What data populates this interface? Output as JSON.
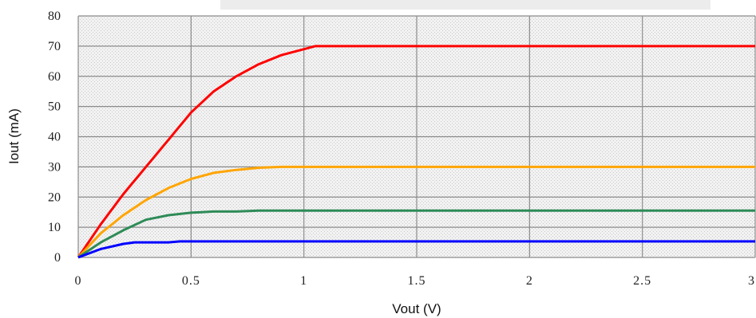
{
  "chart_data": {
    "type": "line",
    "xlabel": "Vout (V)",
    "ylabel": "Iout (mA)",
    "xlim": [
      0,
      3
    ],
    "ylim": [
      0,
      80
    ],
    "x_ticks": [
      "0",
      "0.5",
      "1",
      "1.5",
      "2",
      "2.5",
      "3"
    ],
    "y_ticks": [
      "0",
      "10",
      "20",
      "30",
      "40",
      "50",
      "60",
      "70",
      "80"
    ],
    "grid": true,
    "legend": "none",
    "series": [
      {
        "color": "#ff0000",
        "x": [
          0,
          0.1,
          0.2,
          0.3,
          0.4,
          0.5,
          0.6,
          0.7,
          0.8,
          0.9,
          1.0,
          1.05,
          1.1,
          1.5,
          2.0,
          2.5,
          3.0
        ],
        "y": [
          0,
          11,
          21,
          30,
          39,
          48,
          55,
          60,
          64,
          67,
          69,
          70,
          70,
          70,
          70,
          70,
          70
        ]
      },
      {
        "color": "#ffa500",
        "x": [
          0,
          0.1,
          0.2,
          0.3,
          0.4,
          0.5,
          0.6,
          0.7,
          0.8,
          0.9,
          1.0,
          1.5,
          2.0,
          2.5,
          3.0
        ],
        "y": [
          0,
          8,
          14,
          19,
          23,
          26,
          28,
          29,
          29.7,
          30,
          30,
          30,
          30,
          30,
          30
        ]
      },
      {
        "color": "#2e8b57",
        "x": [
          0,
          0.1,
          0.2,
          0.3,
          0.4,
          0.5,
          0.6,
          0.7,
          0.8,
          1.0,
          1.5,
          2.0,
          2.5,
          3.0
        ],
        "y": [
          0,
          5,
          9,
          12.5,
          14,
          14.8,
          15.2,
          15.2,
          15.5,
          15.5,
          15.5,
          15.5,
          15.5,
          15.5
        ]
      },
      {
        "color": "#0000ff",
        "x": [
          0,
          0.1,
          0.2,
          0.25,
          0.4,
          0.45,
          0.5,
          1.0,
          1.5,
          2.0,
          2.5,
          3.0
        ],
        "y": [
          0,
          2.8,
          4.5,
          5,
          5,
          5.3,
          5.3,
          5.3,
          5.3,
          5.3,
          5.3,
          5.3
        ]
      }
    ]
  }
}
